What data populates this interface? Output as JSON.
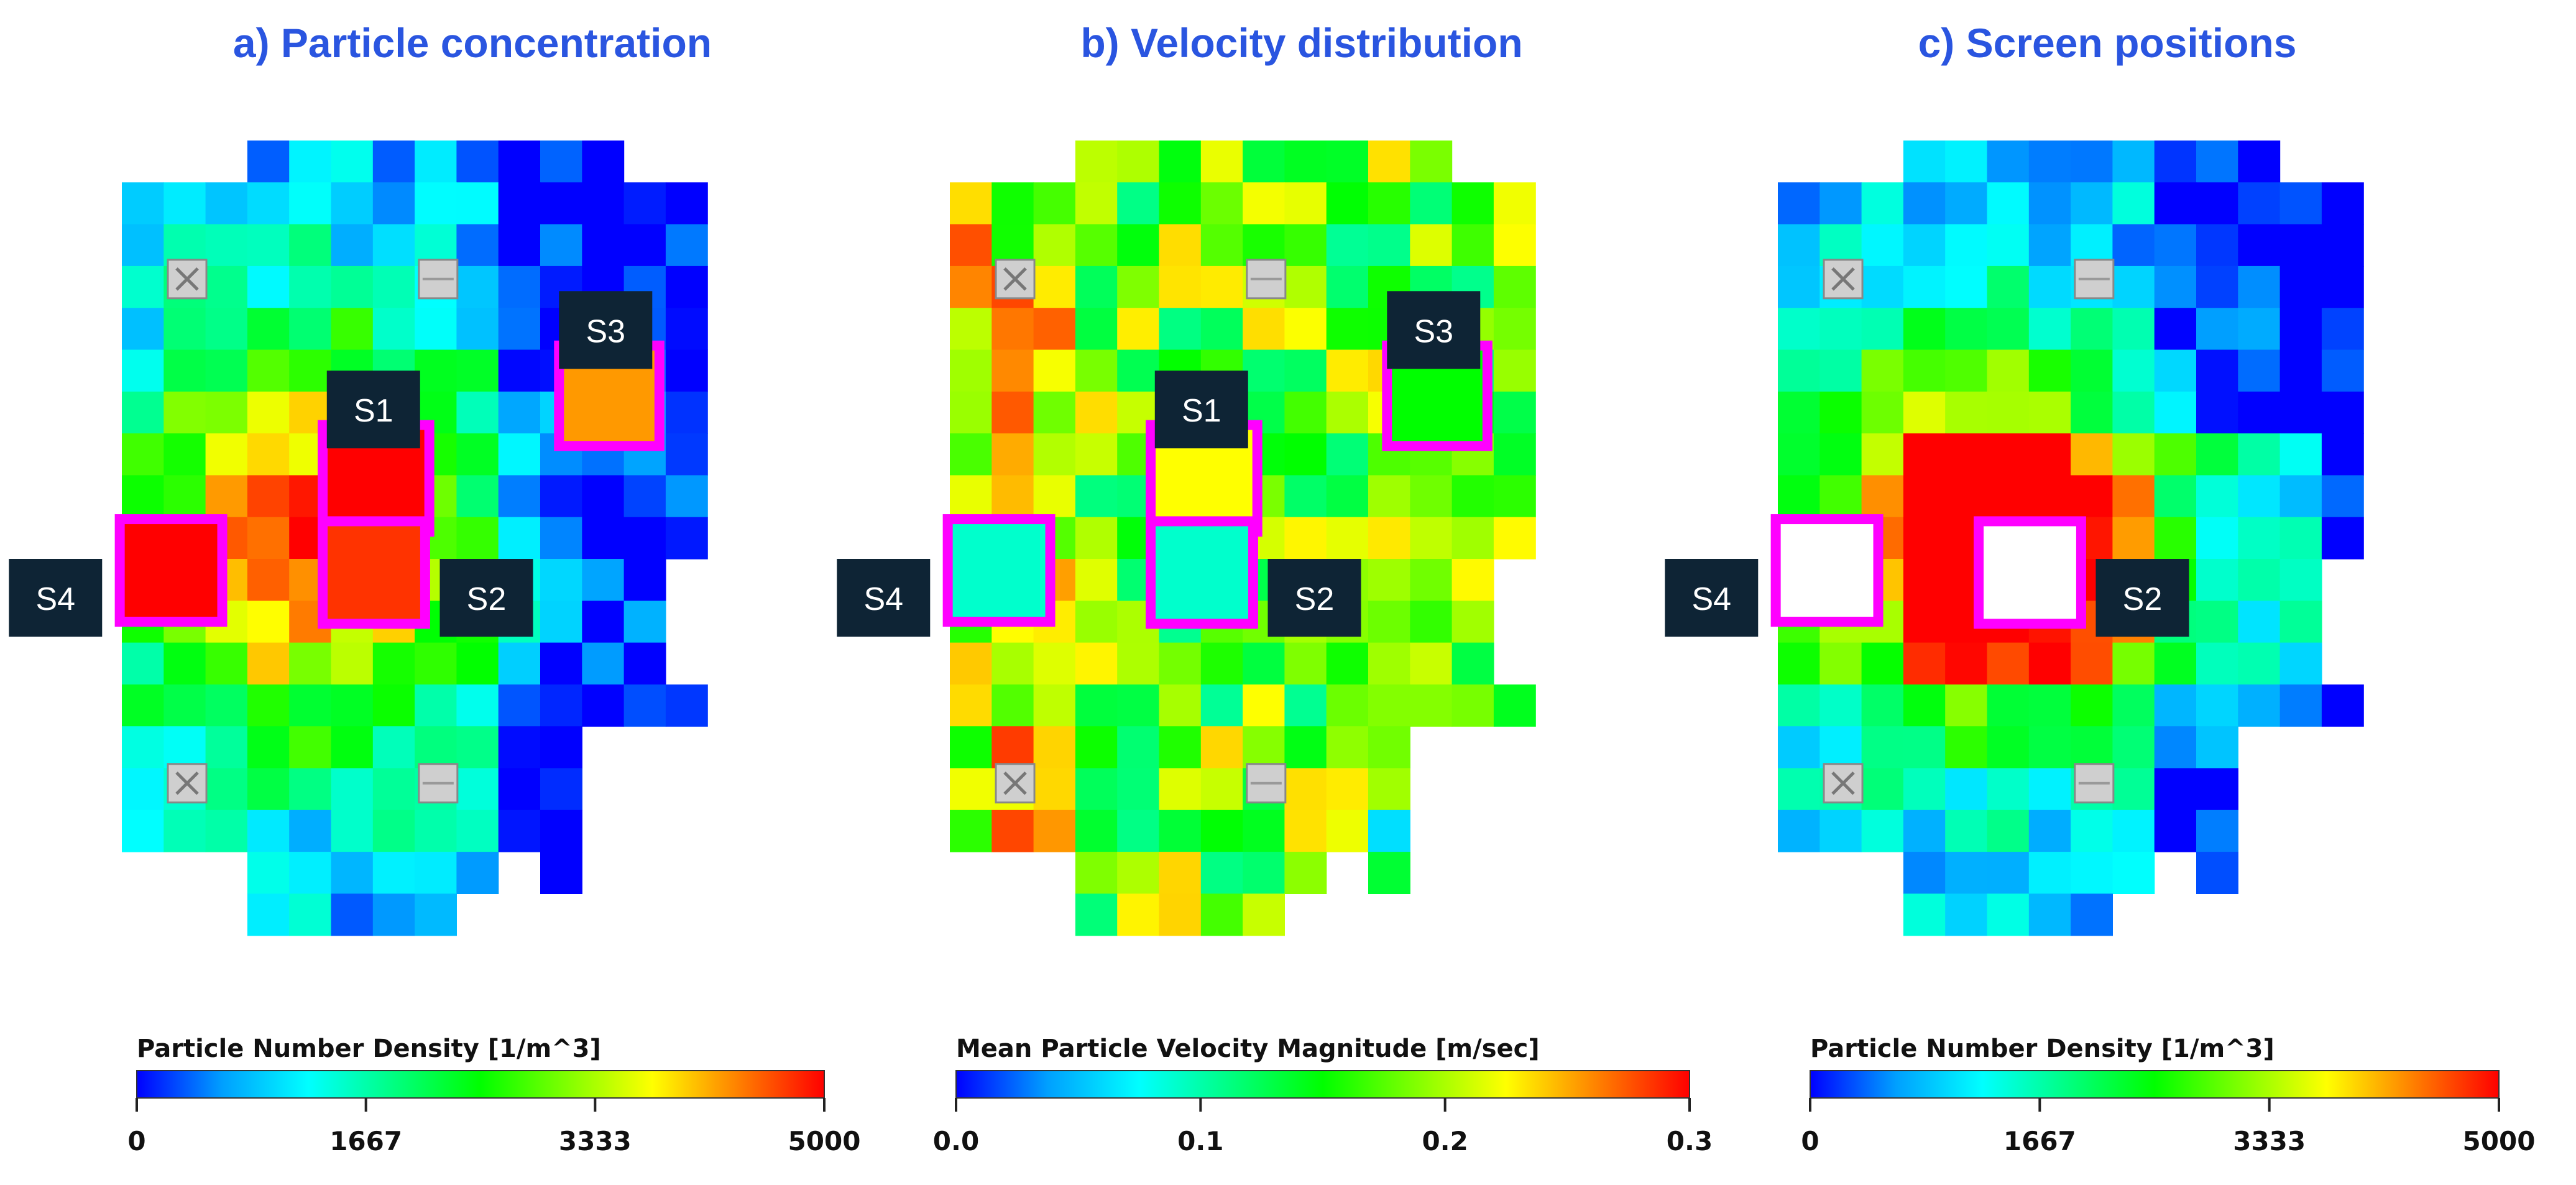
{
  "colors": {
    "title": "#2A55E0",
    "highlight": "#FF00FF",
    "label_bg": "#0E2435",
    "label_fg": "#FFFFFF",
    "colormap": [
      "#0000FF",
      "#00A0FF",
      "#00FFFF",
      "#00FF80",
      "#00FF00",
      "#80FF00",
      "#FFFF00",
      "#FF8000",
      "#FF0000"
    ],
    "device_fill": "#CFCFCF"
  },
  "chart_data": [
    {
      "type": "heatmap",
      "title": "a) Particle concentration",
      "field": "Particle Number Density",
      "colorbar": {
        "label": "Particle Number Density [1/m^3]",
        "ticks": [
          "0",
          "1667",
          "3333",
          "5000"
        ],
        "range": [
          0,
          5000
        ]
      },
      "grid_seed": 11,
      "grid_bias": "concentration",
      "regions": [
        {
          "name": "S1",
          "highlighted": true,
          "level": 1.0
        },
        {
          "name": "S2",
          "highlighted": true,
          "level": 0.95
        },
        {
          "name": "S3",
          "highlighted": true,
          "level": 0.85
        },
        {
          "name": "S4",
          "highlighted": true,
          "level": 1.0
        }
      ],
      "labels": [
        "S1",
        "S2",
        "S3",
        "S4"
      ]
    },
    {
      "type": "heatmap",
      "title": "b) Velocity distribution",
      "field": "Mean Particle Velocity Magnitude",
      "colorbar": {
        "label": "Mean Particle Velocity Magnitude [m/sec]",
        "ticks": [
          "0.0",
          "0.1",
          "0.2",
          "0.3"
        ],
        "range": [
          0.0,
          0.3
        ]
      },
      "grid_seed": 29,
      "grid_bias": "velocity",
      "regions": [
        {
          "name": "S1",
          "highlighted": true,
          "level": 0.75
        },
        {
          "name": "S2",
          "highlighted": true,
          "level": 0.3
        },
        {
          "name": "S3",
          "highlighted": true,
          "level": 0.5
        },
        {
          "name": "S4",
          "highlighted": true,
          "level": 0.3
        }
      ],
      "labels": [
        "S1",
        "S2",
        "S3",
        "S4"
      ]
    },
    {
      "type": "heatmap",
      "title": "c) Screen positions",
      "field": "Particle Number Density",
      "colorbar": {
        "label": "Particle Number Density [1/m^3]",
        "ticks": [
          "0",
          "1667",
          "3333",
          "5000"
        ],
        "range": [
          0,
          5000
        ]
      },
      "grid_seed": 53,
      "grid_bias": "concentration-screens",
      "regions": [
        {
          "name": "S2",
          "highlighted": true,
          "level": -1
        },
        {
          "name": "S4",
          "highlighted": true,
          "level": -1
        }
      ],
      "labels": [
        "S2",
        "S4"
      ]
    }
  ]
}
